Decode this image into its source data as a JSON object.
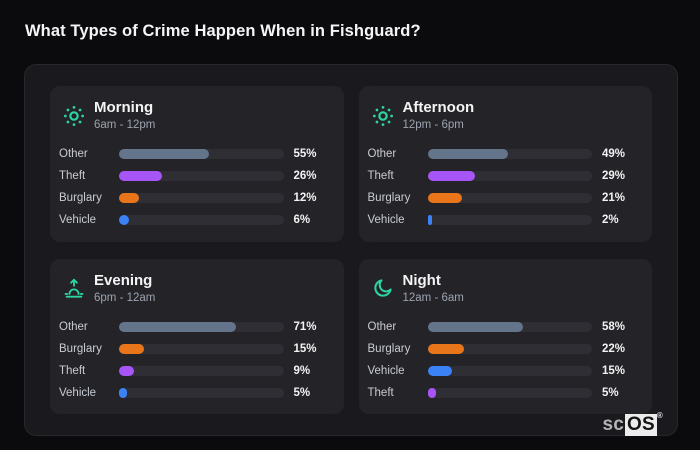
{
  "title": "What Types of Crime Happen When in Fishguard?",
  "watermark": {
    "prefix": "sc",
    "boxed": "OS",
    "registered": "®"
  },
  "colors": {
    "accent_icon": "#2dd4a4",
    "categories": {
      "Other": "#64748b",
      "Theft": "#a855f7",
      "Burglary": "#e8751a",
      "Vehicle": "#3b82f6"
    },
    "track": "#2e2e34",
    "card_bg": "#242428",
    "panel_bg": "#1a1a1e",
    "page_bg": "#0b0b0d"
  },
  "chart_data": {
    "type": "bar",
    "title": "What Types of Crime Happen When in Fishguard?",
    "value_unit": "%",
    "xlim": [
      0,
      100
    ],
    "orientation": "horizontal",
    "groups": [
      {
        "name": "Morning",
        "time_range": "6am - 12pm",
        "icon": "sun",
        "bars": [
          {
            "label": "Other",
            "value": 55
          },
          {
            "label": "Theft",
            "value": 26
          },
          {
            "label": "Burglary",
            "value": 12
          },
          {
            "label": "Vehicle",
            "value": 6
          }
        ]
      },
      {
        "name": "Afternoon",
        "time_range": "12pm - 6pm",
        "icon": "sun",
        "bars": [
          {
            "label": "Other",
            "value": 49
          },
          {
            "label": "Theft",
            "value": 29
          },
          {
            "label": "Burglary",
            "value": 21
          },
          {
            "label": "Vehicle",
            "value": 2
          }
        ]
      },
      {
        "name": "Evening",
        "time_range": "6pm - 12am",
        "icon": "sunrise",
        "bars": [
          {
            "label": "Other",
            "value": 71
          },
          {
            "label": "Burglary",
            "value": 15
          },
          {
            "label": "Theft",
            "value": 9
          },
          {
            "label": "Vehicle",
            "value": 5
          }
        ]
      },
      {
        "name": "Night",
        "time_range": "12am - 6am",
        "icon": "moon",
        "bars": [
          {
            "label": "Other",
            "value": 58
          },
          {
            "label": "Burglary",
            "value": 22
          },
          {
            "label": "Vehicle",
            "value": 15
          },
          {
            "label": "Theft",
            "value": 5
          }
        ]
      }
    ]
  }
}
